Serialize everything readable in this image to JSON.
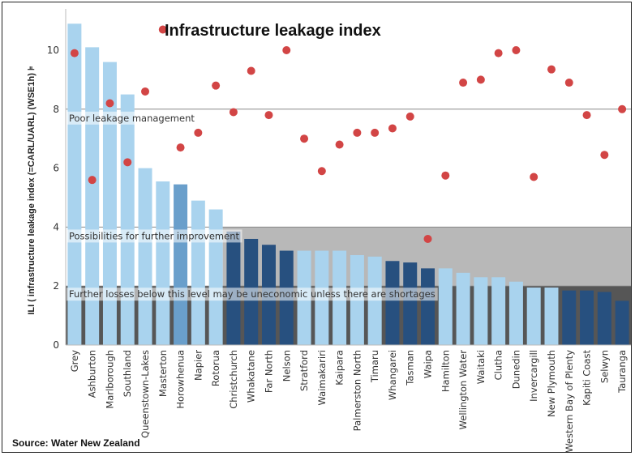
{
  "chart_data": {
    "type": "bar",
    "title": "Infrastructure leakage index",
    "ylabel": "ILI ( infrastructure leakage index (=CARL/UARL) (WSE1h) ⊧",
    "source": "Source: Water New Zealand",
    "ylim": [
      0,
      11
    ],
    "yticks": [
      0,
      2,
      4,
      6,
      8,
      10
    ],
    "bands": [
      {
        "label": "Poor leakage management",
        "threshold": 8
      },
      {
        "label": "Possibilities for further improvement",
        "from": 2,
        "to": 4
      },
      {
        "label": "Further losses below this level may be uneconomic unless there are shortages",
        "from": 0,
        "to": 2
      }
    ],
    "categories": [
      "Grey",
      "Ashburton",
      "Marlborough",
      "Southland",
      "Queenstown-Lakes",
      "Masterton",
      "Horowhenua",
      "Napier",
      "Rotorua",
      "Christchurch",
      "Whakatane",
      "Far North",
      "Nelson",
      "Stratford",
      "Waimakariri",
      "Kaipara",
      "Palmerston North",
      "Timaru",
      "Whangarei",
      "Tasman",
      "Waipa",
      "Hamilton",
      "Wellington Water",
      "Waitaki",
      "Clutha",
      "Dunedin",
      "Invercargill",
      "New Plymouth",
      "Western Bay of Plenty",
      "Kapiti Coast",
      "Selwyn",
      "Tauranga"
    ],
    "series": [
      {
        "values": [
          10.9,
          10.1,
          9.6,
          8.5,
          6.0,
          5.55,
          5.45,
          4.9,
          4.6,
          3.85,
          3.6,
          3.4,
          3.2,
          3.2,
          3.2,
          3.2,
          3.05,
          3.0,
          2.85,
          2.8,
          2.6,
          2.6,
          2.45,
          2.3,
          2.3,
          2.15,
          1.95,
          1.95,
          1.85,
          1.85,
          1.8,
          1.5
        ]
      },
      {
        "values": [
          9.9,
          5.6,
          8.2,
          6.2,
          8.6,
          10.7,
          6.7,
          7.2,
          8.8,
          7.9,
          9.3,
          7.8,
          10.0,
          7.0,
          5.9,
          6.8,
          7.2,
          7.2,
          7.35,
          7.75,
          3.6,
          5.75,
          8.9,
          9.0,
          9.9,
          10.0,
          5.7,
          9.35,
          8.9,
          7.8,
          6.45,
          8.0
        ]
      }
    ],
    "bar_shades": [
      "light",
      "light",
      "light",
      "light",
      "light",
      "light",
      "mid",
      "light",
      "light",
      "dark",
      "dark",
      "dark",
      "dark",
      "light",
      "light",
      "light",
      "light",
      "light",
      "dark",
      "dark",
      "dark",
      "light",
      "light",
      "light",
      "light",
      "light",
      "light",
      "light",
      "dark",
      "dark",
      "dark",
      "dark"
    ],
    "colors": {
      "light": "#a9d3ee",
      "mid": "#6a9fcb",
      "dark": "#27507f",
      "dot": "#d24545",
      "band_mid": "#b8b8b8",
      "band_low": "#565656",
      "threshold_line": "#888888"
    }
  }
}
